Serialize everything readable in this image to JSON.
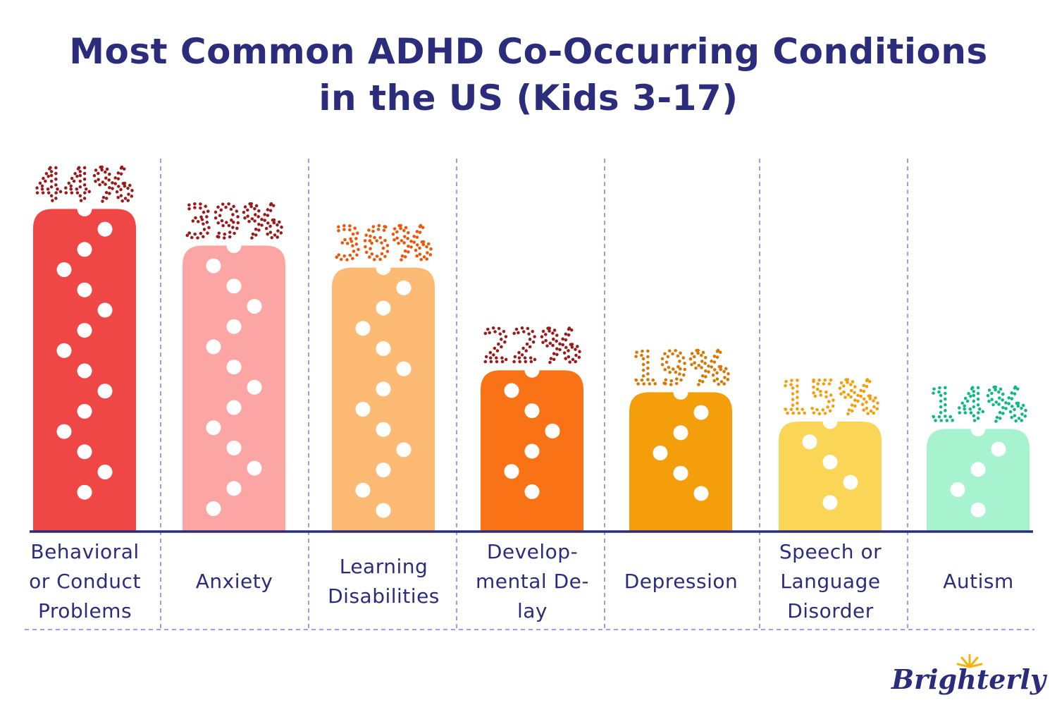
{
  "chart_data": {
    "type": "bar",
    "title_lines": [
      "Most Common ADHD Co-Occurring Conditions",
      "in the US (Kids 3-17)"
    ],
    "categories": [
      "Behavioral or Conduct Problems",
      "Anxiety",
      "Learning Disabilities",
      "Developmental Delay",
      "Depression",
      "Speech or Language Disorder",
      "Autism"
    ],
    "category_lines": [
      [
        "Behavioral",
        "or Conduct",
        "Problems"
      ],
      [
        "Anxiety"
      ],
      [
        "Learning",
        "Disabilities"
      ],
      [
        "Develop-",
        "mental De-",
        "lay"
      ],
      [
        "Depression"
      ],
      [
        "Speech or",
        "Language",
        "Disorder"
      ],
      [
        "Autism"
      ]
    ],
    "values": [
      44,
      39,
      36,
      22,
      19,
      15,
      14
    ],
    "value_labels": [
      "44%",
      "39%",
      "36%",
      "22%",
      "19%",
      "15%",
      "14%"
    ],
    "bar_colors": [
      "#ef4646",
      "#fca5a5",
      "#fdba74",
      "#f97316",
      "#f59e0b",
      "#fad556",
      "#a7f3d0"
    ],
    "label_colors": [
      "#991b1b",
      "#991b1b",
      "#ea580c",
      "#991b1b",
      "#d97706",
      "#f59e0b",
      "#10b981"
    ],
    "xlabel": "",
    "ylabel": "",
    "grid": false,
    "separators": "dashed vertical"
  },
  "brand": {
    "name": "Brighterly"
  }
}
